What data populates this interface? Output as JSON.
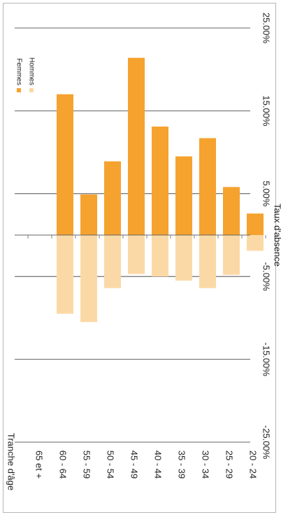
{
  "chart_data": {
    "type": "bar",
    "orientation": "rotated-90-clockwise",
    "xlabel": "Tranche d'âge",
    "ylabel": "Taux d'absence",
    "categories": [
      "65 et +",
      "60 - 64",
      "55 - 59",
      "50 - 54",
      "45 - 49",
      "40 - 44",
      "35 - 39",
      "30 - 34",
      "25 - 29",
      "20 - 24"
    ],
    "series": [
      {
        "name": "Femmes",
        "color": "#f5a22e",
        "values": [
          0,
          17.0,
          4.9,
          8.9,
          21.4,
          13.1,
          9.5,
          11.7,
          5.8,
          2.6
        ]
      },
      {
        "name": "Hommes",
        "color": "#fbd9a6",
        "values": [
          0,
          -9.5,
          -10.5,
          -6.4,
          -4.7,
          -5.0,
          -5.5,
          -6.4,
          -4.8,
          -1.9
        ]
      }
    ],
    "ylim": [
      -25,
      25
    ],
    "ytick_values": [
      -25,
      -15,
      -5,
      5,
      15,
      25
    ],
    "ytick_labels": [
      "-25.00%",
      "-15.00%",
      "-5.00%",
      "5.00%",
      "15.00%",
      "25.00%"
    ],
    "grid": true,
    "legend_position": "top-right"
  }
}
